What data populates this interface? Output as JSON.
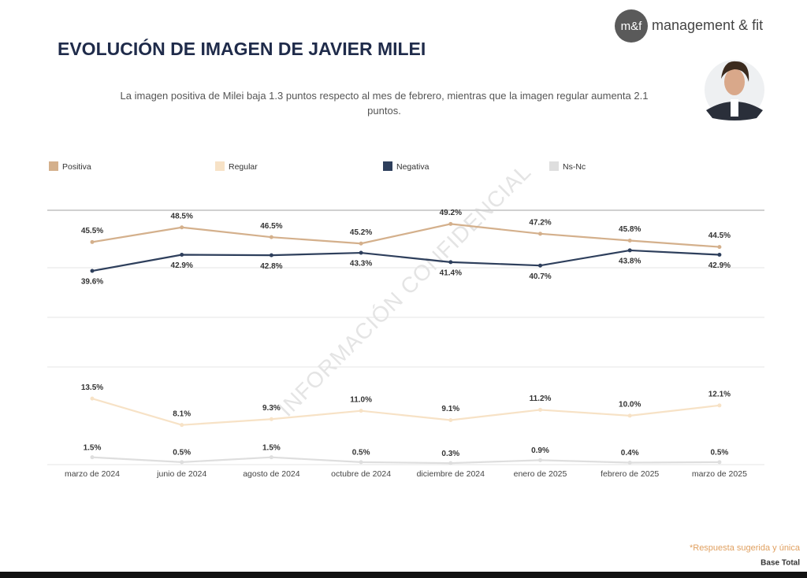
{
  "logo": {
    "mark": "m&f",
    "name": "management & fit"
  },
  "footnote": "*Respuesta sugerida y única",
  "base_note": "Base Total",
  "watermark": "INFORMACIÓN CONFIDENCIAL",
  "chart_data": {
    "type": "line",
    "title": "EVOLUCIÓN DE IMAGEN DE JAVIER MILEI",
    "subtitle": "La imagen positiva de Milei baja 1.3 puntos respecto al mes de febrero, mientras que la imagen regular aumenta 2.1 puntos.",
    "categories": [
      "marzo de 2024",
      "junio de 2024",
      "agosto de 2024",
      "octubre de 2024",
      "diciembre de 2024",
      "enero de 2025",
      "febrero de 2025",
      "marzo de 2025"
    ],
    "ylim": [
      0,
      52
    ],
    "series": [
      {
        "name": "Positiva",
        "color": "#d4b08c",
        "values": [
          45.5,
          48.5,
          46.5,
          45.2,
          49.2,
          47.2,
          45.8,
          44.5
        ],
        "value_labels": [
          "45.5%",
          "48.5%",
          "46.5%",
          "45.2%",
          "49.2%",
          "47.2%",
          "45.8%",
          "44.5%"
        ]
      },
      {
        "name": "Regular",
        "color": "#f7e2c6",
        "values": [
          13.5,
          8.1,
          9.3,
          11.0,
          9.1,
          11.2,
          10.0,
          12.1
        ],
        "value_labels": [
          "13.5%",
          "8.1%",
          "9.3%",
          "11.0%",
          "9.1%",
          "11.2%",
          "10.0%",
          "12.1%"
        ]
      },
      {
        "name": "Negativa",
        "color": "#2e3f5c",
        "values": [
          39.6,
          42.9,
          42.8,
          43.3,
          41.4,
          40.7,
          43.8,
          42.9
        ],
        "value_labels": [
          "39.6%",
          "42.9%",
          "42.8%",
          "43.3%",
          "41.4%",
          "40.7%",
          "43.8%",
          "42.9%"
        ]
      },
      {
        "name": "Ns-Nc",
        "color": "#dedede",
        "values": [
          1.5,
          0.5,
          1.5,
          0.5,
          0.3,
          0.9,
          0.4,
          0.5
        ],
        "value_labels": [
          "1.5%",
          "0.5%",
          "1.5%",
          "0.5%",
          "0.3%",
          "0.9%",
          "0.4%",
          "0.5%"
        ]
      }
    ]
  }
}
